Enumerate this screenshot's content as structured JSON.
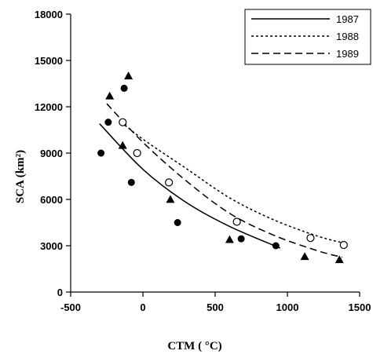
{
  "chart_data": {
    "type": "scatter",
    "xlabel": "CTM ( °C)",
    "ylabel": "SCA (km²)",
    "xlim": [
      -500,
      1500
    ],
    "ylim": [
      0,
      18000
    ],
    "xticks": [
      -500,
      0,
      500,
      1000,
      1500
    ],
    "yticks": [
      0,
      3000,
      6000,
      9000,
      12000,
      15000,
      18000
    ],
    "legend_position": "top-right",
    "series": [
      {
        "name": "1987",
        "marker": "filled-circle",
        "line_style": "solid",
        "points": [
          {
            "x": -290,
            "y": 9000
          },
          {
            "x": -240,
            "y": 11000
          },
          {
            "x": -130,
            "y": 13200
          },
          {
            "x": -80,
            "y": 7100
          },
          {
            "x": 240,
            "y": 4500
          },
          {
            "x": 680,
            "y": 3450
          },
          {
            "x": 920,
            "y": 3000
          }
        ],
        "fit": {
          "x_start": -300,
          "x_end": 950,
          "points": [
            [
              -300,
              10900
            ],
            [
              0,
              7950
            ],
            [
              300,
              5800
            ],
            [
              600,
              4250
            ],
            [
              950,
              2850
            ]
          ]
        }
      },
      {
        "name": "1988",
        "marker": "open-circle",
        "line_style": "dotted",
        "points": [
          {
            "x": -140,
            "y": 11000
          },
          {
            "x": -40,
            "y": 9000
          },
          {
            "x": 180,
            "y": 7100
          },
          {
            "x": 650,
            "y": 4550
          },
          {
            "x": 1160,
            "y": 3500
          },
          {
            "x": 1390,
            "y": 3050
          }
        ],
        "fit": {
          "x_start": -150,
          "x_end": 1400,
          "points": [
            [
              -150,
              11000
            ],
            [
              0,
              9900
            ],
            [
              300,
              8000
            ],
            [
              600,
              6100
            ],
            [
              900,
              4700
            ],
            [
              1200,
              3650
            ],
            [
              1400,
              3150
            ]
          ]
        }
      },
      {
        "name": "1989",
        "marker": "filled-triangle",
        "line_style": "dashed",
        "points": [
          {
            "x": -230,
            "y": 12700
          },
          {
            "x": -100,
            "y": 14000
          },
          {
            "x": -140,
            "y": 9500
          },
          {
            "x": 190,
            "y": 6000
          },
          {
            "x": 600,
            "y": 3400
          },
          {
            "x": 1120,
            "y": 2300
          },
          {
            "x": 1360,
            "y": 2100
          }
        ],
        "fit": {
          "x_start": -250,
          "x_end": 1380,
          "points": [
            [
              -250,
              12200
            ],
            [
              0,
              9700
            ],
            [
              300,
              7200
            ],
            [
              600,
              5100
            ],
            [
              900,
              3700
            ],
            [
              1200,
              2700
            ],
            [
              1380,
              2250
            ]
          ]
        }
      }
    ]
  }
}
